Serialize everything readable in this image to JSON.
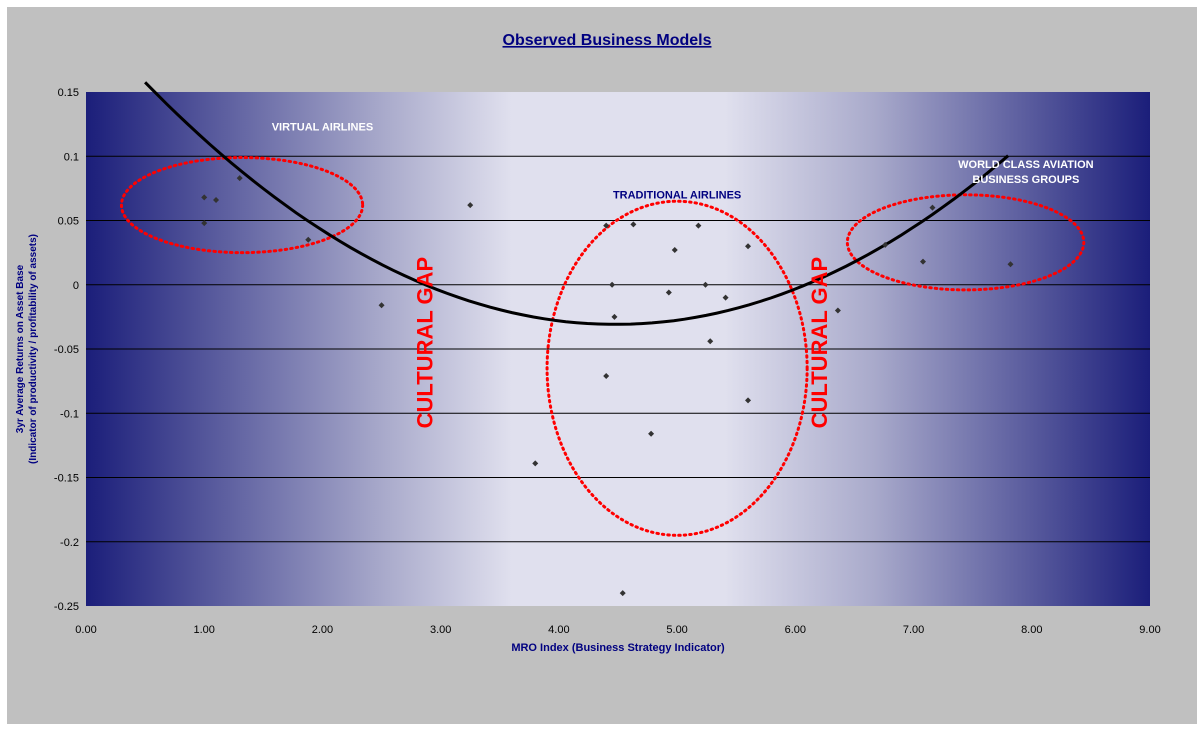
{
  "chart_data": {
    "type": "scatter",
    "title": "Observed Business Models",
    "xlabel": "MRO Index (Business Strategy Indicator)",
    "ylabel_lines": [
      "3yr Average Returns on Asset Base",
      "(Indicator of productivity / profitability of assets)"
    ],
    "xlim": [
      0,
      9
    ],
    "ylim": [
      -0.25,
      0.15
    ],
    "grid": "horizontal",
    "x_ticks": [
      "0.00",
      "1.00",
      "2.00",
      "3.00",
      "4.00",
      "5.00",
      "6.00",
      "7.00",
      "8.00",
      "9.00"
    ],
    "y_ticks": [
      "0.15",
      "0.1",
      "0.05",
      "0",
      "-0.05",
      "-0.1",
      "-0.15",
      "-0.2",
      "-0.25"
    ],
    "x_tick_values": [
      0,
      1,
      2,
      3,
      4,
      5,
      6,
      7,
      8,
      9
    ],
    "y_tick_values": [
      0.15,
      0.1,
      0.05,
      0,
      -0.05,
      -0.1,
      -0.15,
      -0.2,
      -0.25
    ],
    "points": [
      {
        "x": 1.0,
        "y": 0.068
      },
      {
        "x": 1.0,
        "y": 0.048
      },
      {
        "x": 1.1,
        "y": 0.066
      },
      {
        "x": 1.3,
        "y": 0.083
      },
      {
        "x": 1.88,
        "y": 0.035
      },
      {
        "x": 2.5,
        "y": -0.016
      },
      {
        "x": 3.25,
        "y": 0.062
      },
      {
        "x": 3.8,
        "y": -0.139
      },
      {
        "x": 4.4,
        "y": 0.046
      },
      {
        "x": 4.4,
        "y": -0.071
      },
      {
        "x": 4.45,
        "y": 0.0
      },
      {
        "x": 4.47,
        "y": -0.025
      },
      {
        "x": 4.54,
        "y": -0.24
      },
      {
        "x": 4.63,
        "y": 0.047
      },
      {
        "x": 4.78,
        "y": -0.116
      },
      {
        "x": 4.93,
        "y": -0.006
      },
      {
        "x": 4.98,
        "y": 0.027
      },
      {
        "x": 5.18,
        "y": 0.046
      },
      {
        "x": 5.24,
        "y": 0.0
      },
      {
        "x": 5.28,
        "y": -0.044
      },
      {
        "x": 5.41,
        "y": -0.01
      },
      {
        "x": 5.6,
        "y": 0.03
      },
      {
        "x": 5.6,
        "y": -0.09
      },
      {
        "x": 6.36,
        "y": -0.02
      },
      {
        "x": 6.76,
        "y": 0.031
      },
      {
        "x": 7.08,
        "y": 0.018
      },
      {
        "x": 7.16,
        "y": 0.06
      },
      {
        "x": 7.82,
        "y": 0.016
      }
    ],
    "trendline": {
      "type": "polynomial-2",
      "range": [
        0.5,
        7.8
      ],
      "coefficients": [
        0.0119,
        -0.1066,
        0.2079
      ]
    },
    "groups": [
      {
        "label": "VIRTUAL AIRLINES",
        "label_lines": [
          "VIRTUAL AIRLINES"
        ],
        "cx": 1.32,
        "cy": 0.062,
        "rx": 1.02,
        "ry": 0.037
      },
      {
        "label": "TRADITIONAL AIRLINES",
        "label_lines": [
          "TRADITIONAL AIRLINES"
        ],
        "cx": 5.0,
        "cy": -0.065,
        "rx": 1.1,
        "ry": 0.13
      },
      {
        "label": "WORLD CLASS AVIATION BUSINESS GROUPS",
        "label_lines": [
          "WORLD CLASS AVIATION",
          "BUSINESS GROUPS"
        ],
        "cx": 7.44,
        "cy": 0.033,
        "rx": 1.0,
        "ry": 0.037
      }
    ],
    "gap_labels": [
      {
        "text": "CULTURAL GAP",
        "x": 2.93,
        "y": -0.045
      },
      {
        "text": "CULTURAL GAP",
        "x": 6.27,
        "y": -0.045
      }
    ],
    "colors": {
      "frame": "#c0c0c0",
      "plot_dark": "#1b1e7a",
      "plot_light": "#e2e2ef",
      "title": "#000080",
      "axis_text": "#000000",
      "gridline": "#000000",
      "point": "#333333",
      "trend": "#000000",
      "ellipse": "#ff0000",
      "gap_text": "#ff0000",
      "label_light": "#ffffff",
      "label_dark": "#000080"
    }
  }
}
